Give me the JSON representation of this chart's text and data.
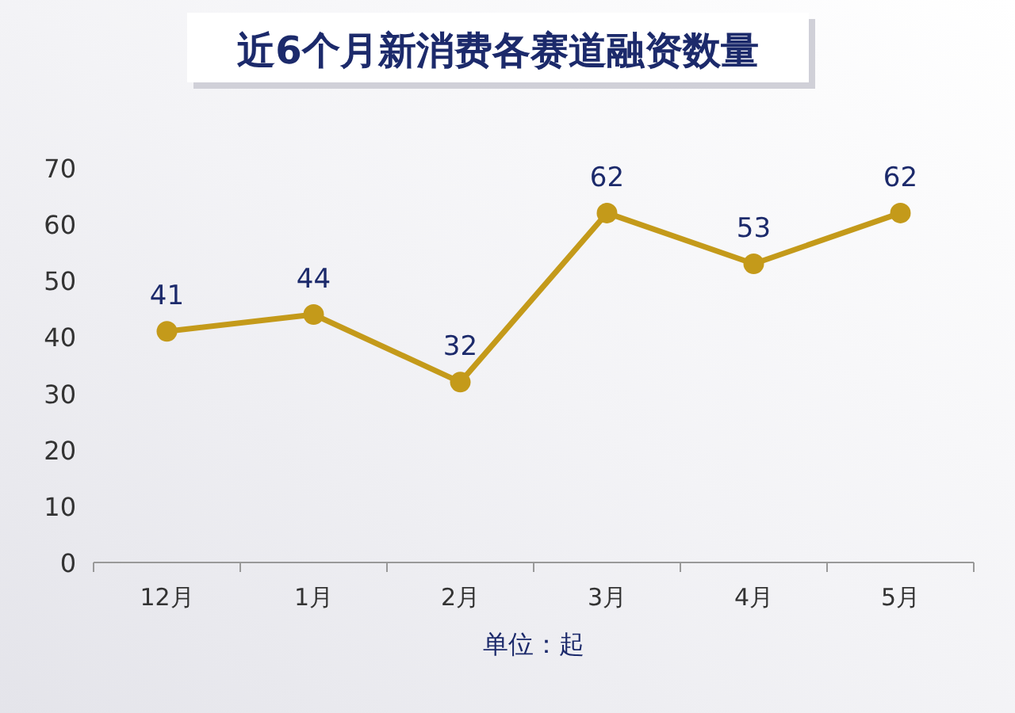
{
  "chart_data": {
    "type": "line",
    "title": "近6个月新消费各赛道融资数量",
    "xlabel": "单位：起",
    "categories": [
      "12月",
      "1月",
      "2月",
      "3月",
      "4月",
      "5月"
    ],
    "series": [
      {
        "color": "#c49a1a",
        "values": [
          41,
          44,
          32,
          62,
          53,
          62
        ]
      }
    ],
    "ylim": [
      0,
      70
    ],
    "yticks": [
      0,
      10,
      20,
      30,
      40,
      50,
      60,
      70
    ],
    "data_labels": true,
    "marker": "circle",
    "line_style": "solid",
    "grid": false
  }
}
